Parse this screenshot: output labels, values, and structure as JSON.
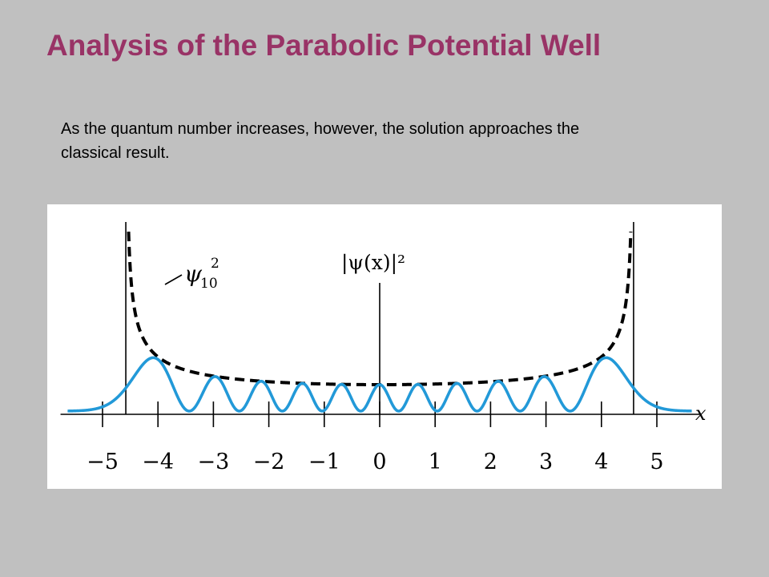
{
  "slide": {
    "title": "Analysis of the Parabolic Potential Well",
    "body": "As the quantum number increases, however, the solution approaches the classical result."
  },
  "colors": {
    "title": "#993366",
    "background": "#c0c0c0",
    "quantum_curve": "#2299d8",
    "classical_curve": "#000000"
  },
  "chart_data": {
    "type": "line",
    "xlabel": "x",
    "ylabel": "|ψ(x)|²",
    "xlim": [
      -5.7,
      5.7
    ],
    "x_ticks": [
      -5,
      -4,
      -3,
      -2,
      -1,
      0,
      1,
      2,
      3,
      4,
      5
    ],
    "x_tick_labels": [
      "−5",
      "−4",
      "−3",
      "−2",
      "−1",
      "0",
      "1",
      "2",
      "3",
      "4",
      "5"
    ],
    "turning_points": [
      -4.58,
      4.58
    ],
    "series": [
      {
        "name": "ψ₁₀²",
        "style": "solid",
        "quantum_number": 10,
        "kind": "quantum probability density"
      },
      {
        "name": "classical",
        "style": "dashed",
        "kind": "classical probability density"
      }
    ],
    "annotations": [
      {
        "base": "ψ",
        "subscript": "10",
        "superscript": "2"
      }
    ]
  }
}
